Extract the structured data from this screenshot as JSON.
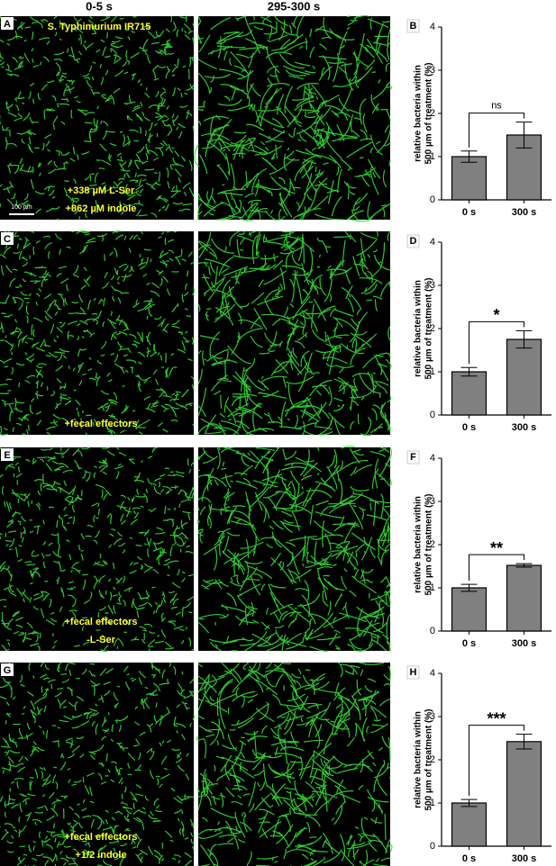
{
  "column_headers": [
    "0-5 s",
    "295-300 s"
  ],
  "image_panels": [
    {
      "label": "A",
      "top_text": "S. Typhimurium IR715",
      "bottom_text": [
        "+338 µM L-Ser",
        "+862 µM indole"
      ],
      "scale_bar": "100 µm"
    },
    {
      "label": "C",
      "bottom_text": [
        "+fecal effectors"
      ]
    },
    {
      "label": "E",
      "bottom_text": [
        "+fecal effectors",
        "-L-Ser"
      ]
    },
    {
      "label": "G",
      "bottom_text": [
        "+fecal effectors",
        "+1/2 indole"
      ]
    }
  ],
  "chart_data": [
    {
      "type": "bar",
      "panel": "B",
      "ylabel": [
        "relative bacteria within",
        "500 µm of treatment (%)"
      ],
      "categories": [
        "0 s",
        "300 s"
      ],
      "values": [
        1.0,
        1.5
      ],
      "errors": [
        0.13,
        0.3
      ],
      "color": "#808080",
      "ylim": [
        0,
        4
      ],
      "yticks": [
        0,
        1,
        2,
        3,
        4
      ],
      "annotation": "ns"
    },
    {
      "type": "bar",
      "panel": "D",
      "ylabel": [
        "relative bacteria within",
        "500 µm of treatment (%)"
      ],
      "categories": [
        "0 s",
        "300 s"
      ],
      "values": [
        1.0,
        1.75
      ],
      "errors": [
        0.1,
        0.2
      ],
      "color": "#808080",
      "ylim": [
        0,
        4
      ],
      "yticks": [
        0,
        1,
        2,
        3,
        4
      ],
      "annotation": "*"
    },
    {
      "type": "bar",
      "panel": "F",
      "ylabel": [
        "relative bacteria within",
        "500 µm of treatment (%)"
      ],
      "categories": [
        "0 s",
        "300 s"
      ],
      "values": [
        1.0,
        1.52
      ],
      "errors": [
        0.08,
        0.04
      ],
      "color": "#808080",
      "ylim": [
        0,
        4
      ],
      "yticks": [
        0,
        1,
        2,
        3,
        4
      ],
      "annotation": "**"
    },
    {
      "type": "bar",
      "panel": "H",
      "ylabel": [
        "relative bacteria within",
        "500 µm of treatment (%)"
      ],
      "categories": [
        "0 s",
        "300 s"
      ],
      "values": [
        1.0,
        2.42
      ],
      "errors": [
        0.08,
        0.17
      ],
      "color": "#808080",
      "ylim": [
        0,
        4
      ],
      "yticks": [
        0,
        1,
        2,
        3,
        4
      ],
      "annotation": "***"
    }
  ]
}
